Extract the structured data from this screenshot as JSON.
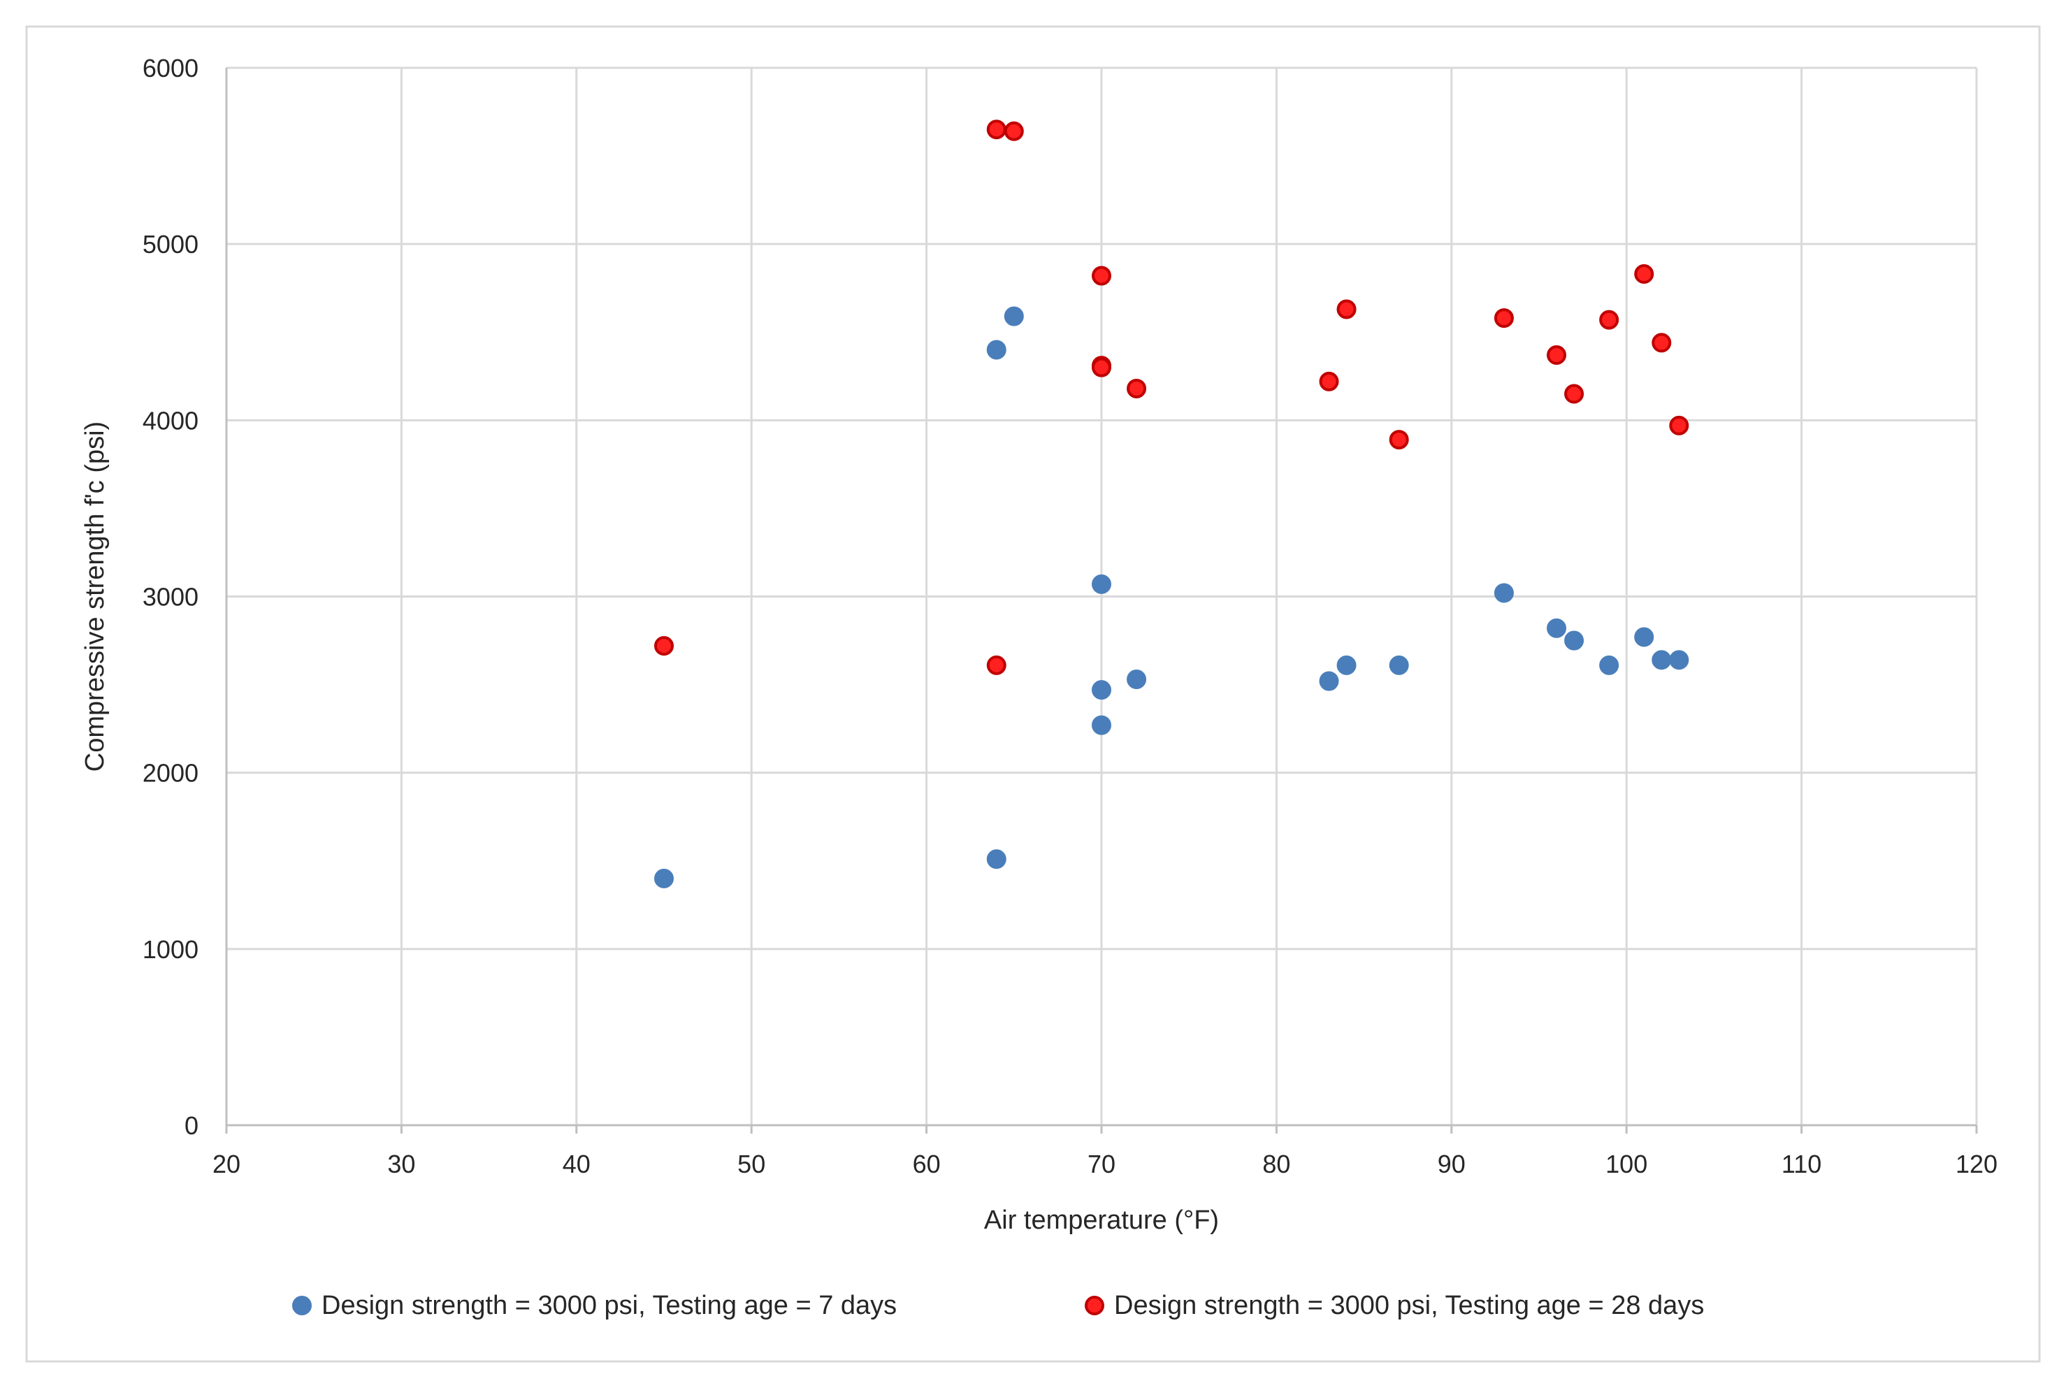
{
  "chart_data": {
    "type": "scatter",
    "title": "",
    "xlabel": "Air temperature (°F)",
    "ylabel": "Compressive strength f'c (psi)",
    "xlim": [
      20,
      120
    ],
    "ylim": [
      0,
      6000
    ],
    "x_ticks": [
      20,
      30,
      40,
      50,
      60,
      70,
      80,
      90,
      100,
      110,
      120
    ],
    "y_ticks": [
      0,
      1000,
      2000,
      3000,
      4000,
      5000,
      6000
    ],
    "x_tick_labels": [
      "20",
      "30",
      "40",
      "50",
      "60",
      "70",
      "80",
      "90",
      "100",
      "110",
      "120"
    ],
    "y_tick_labels": [
      "0",
      "1000",
      "2000",
      "3000",
      "4000",
      "5000",
      "6000"
    ],
    "grid": true,
    "legend_position": "bottom",
    "series": [
      {
        "name": "Design strength = 3000 psi, Testing age = 7 days",
        "color": "#4a7ebb",
        "edge_color": "#4a7ebb",
        "points": [
          [
            45,
            1400
          ],
          [
            64,
            1510
          ],
          [
            64,
            4400
          ],
          [
            65,
            4590
          ],
          [
            70,
            3070
          ],
          [
            70,
            2470
          ],
          [
            70,
            2270
          ],
          [
            72,
            2530
          ],
          [
            83,
            2520
          ],
          [
            84,
            2610
          ],
          [
            87,
            2610
          ],
          [
            93,
            3020
          ],
          [
            96,
            2820
          ],
          [
            97,
            2750
          ],
          [
            99,
            2610
          ],
          [
            101,
            2770
          ],
          [
            102,
            2640
          ],
          [
            103,
            2640
          ]
        ]
      },
      {
        "name": "Design strength = 3000 psi, Testing age = 28 days",
        "color": "#ff2020",
        "edge_color": "#c00000",
        "points": [
          [
            45,
            2720
          ],
          [
            64,
            2610
          ],
          [
            64,
            5650
          ],
          [
            65,
            5640
          ],
          [
            70,
            4820
          ],
          [
            70,
            4310
          ],
          [
            70,
            4300
          ],
          [
            72,
            4180
          ],
          [
            83,
            4220
          ],
          [
            84,
            4630
          ],
          [
            87,
            3890
          ],
          [
            93,
            4580
          ],
          [
            96,
            4370
          ],
          [
            97,
            4150
          ],
          [
            99,
            4570
          ],
          [
            101,
            4830
          ],
          [
            102,
            4440
          ],
          [
            103,
            3970
          ]
        ]
      }
    ]
  }
}
